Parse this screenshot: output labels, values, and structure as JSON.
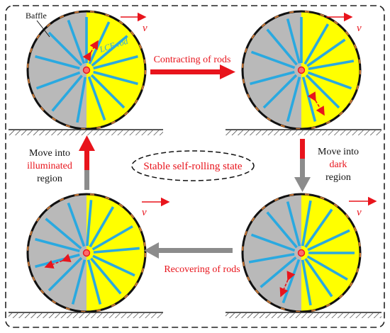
{
  "labels": {
    "baffle": "Baffle",
    "lce_rod": "LCE rod",
    "velocity": "v",
    "contracting": "Contracting of rods",
    "recovering": "Recovering of rods",
    "move_dark": [
      "Move into",
      "dark",
      "region"
    ],
    "move_illuminated": [
      "Move into",
      "illuminated",
      "region"
    ],
    "stable_state": "Stable self-rolling state"
  },
  "wheels": [
    {
      "id": "top-left",
      "rod_angles": [
        -90,
        -65,
        -40,
        -15,
        15,
        45,
        70,
        100,
        130,
        160,
        195,
        225,
        250
      ]
    },
    {
      "id": "top-right",
      "rod_angles": [
        -90,
        -60,
        -35,
        -10,
        20,
        45,
        75,
        105,
        135,
        165,
        200,
        230,
        255
      ]
    },
    {
      "id": "bottom-right",
      "rod_angles": [
        -80,
        -55,
        -25,
        0,
        30,
        55,
        80,
        110,
        140,
        170,
        200,
        230,
        255
      ]
    },
    {
      "id": "bottom-left",
      "rod_angles": [
        -85,
        -60,
        -30,
        -5,
        25,
        50,
        75,
        105,
        135,
        165,
        195,
        220,
        250
      ]
    }
  ],
  "colors": {
    "illuminated": "#ffff00",
    "dark": "#b9b9b9",
    "rod": "#2aa9e0",
    "rim": "#111111",
    "baffle_segment": "#c87533",
    "arrow_red": "#e8141c",
    "arrow_gray": "#8c8c8c",
    "frame": "#222222"
  }
}
